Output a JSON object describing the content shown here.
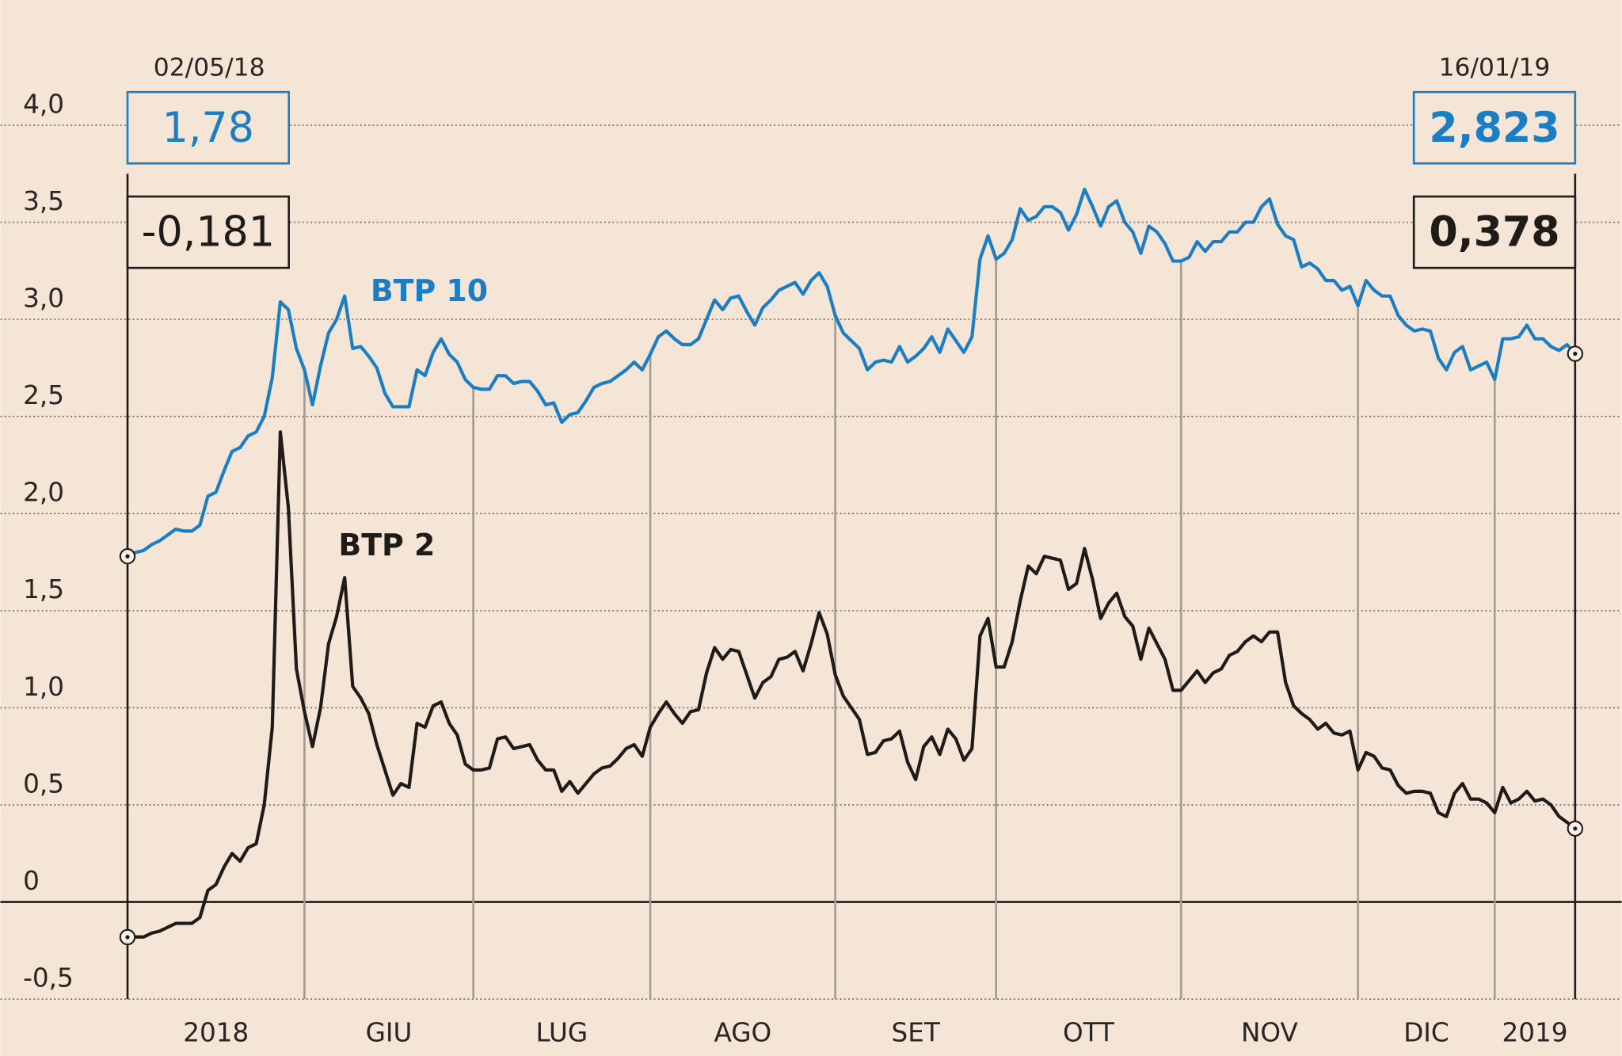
{
  "chart_data": {
    "type": "line",
    "x": [
      "02/05/18",
      "03/05/18",
      "04/05/18",
      "07/05/18",
      "08/05/18",
      "09/05/18",
      "10/05/18",
      "11/05/18",
      "14/05/18",
      "15/05/18",
      "16/05/18",
      "17/05/18",
      "18/05/18",
      "21/05/18",
      "22/05/18",
      "23/05/18",
      "24/05/18",
      "25/05/18",
      "28/05/18",
      "29/05/18",
      "30/05/18",
      "31/05/18",
      "01/06/18",
      "04/06/18",
      "05/06/18",
      "06/06/18",
      "07/06/18",
      "08/06/18",
      "11/06/18",
      "12/06/18",
      "13/06/18",
      "14/06/18",
      "15/06/18",
      "18/06/18",
      "19/06/18",
      "20/06/18",
      "21/06/18",
      "22/06/18",
      "25/06/18",
      "26/06/18",
      "27/06/18",
      "28/06/18",
      "29/06/18",
      "02/07/18",
      "03/07/18",
      "04/07/18",
      "05/07/18",
      "06/07/18",
      "09/07/18",
      "10/07/18",
      "11/07/18",
      "12/07/18",
      "13/07/18",
      "16/07/18",
      "17/07/18",
      "18/07/18",
      "19/07/18",
      "20/07/18",
      "23/07/18",
      "24/07/18",
      "25/07/18",
      "26/07/18",
      "27/07/18",
      "30/07/18",
      "31/07/18",
      "01/08/18",
      "02/08/18",
      "03/08/18",
      "06/08/18",
      "07/08/18",
      "08/08/18",
      "09/08/18",
      "10/08/18",
      "13/08/18",
      "14/08/18",
      "15/08/18",
      "16/08/18",
      "17/08/18",
      "20/08/18",
      "21/08/18",
      "22/08/18",
      "23/08/18",
      "24/08/18",
      "27/08/18",
      "28/08/18",
      "29/08/18",
      "30/08/18",
      "31/08/18",
      "03/09/18",
      "04/09/18",
      "05/09/18",
      "06/09/18",
      "07/09/18",
      "10/09/18",
      "11/09/18",
      "12/09/18",
      "13/09/18",
      "14/09/18",
      "17/09/18",
      "18/09/18",
      "19/09/18",
      "20/09/18",
      "21/09/18",
      "24/09/18",
      "25/09/18",
      "26/09/18",
      "27/09/18",
      "28/09/18",
      "01/10/18",
      "02/10/18",
      "03/10/18",
      "04/10/18",
      "05/10/18",
      "08/10/18",
      "09/10/18",
      "10/10/18",
      "11/10/18",
      "12/10/18",
      "15/10/18",
      "16/10/18",
      "17/10/18",
      "18/10/18",
      "19/10/18",
      "22/10/18",
      "23/10/18",
      "24/10/18",
      "25/10/18",
      "26/10/18",
      "29/10/18",
      "30/10/18",
      "31/10/18",
      "01/11/18",
      "02/11/18",
      "05/11/18",
      "06/11/18",
      "07/11/18",
      "08/11/18",
      "09/11/18",
      "12/11/18",
      "13/11/18",
      "14/11/18",
      "15/11/18",
      "16/11/18",
      "19/11/18",
      "20/11/18",
      "21/11/18",
      "22/11/18",
      "23/11/18",
      "26/11/18",
      "27/11/18",
      "28/11/18",
      "29/11/18",
      "30/11/18",
      "03/12/18",
      "04/12/18",
      "05/12/18",
      "06/12/18",
      "07/12/18",
      "10/12/18",
      "11/12/18",
      "12/12/18",
      "13/12/18",
      "14/12/18",
      "17/12/18",
      "18/12/18",
      "19/12/18",
      "20/12/18",
      "21/12/18",
      "27/12/18",
      "28/12/18",
      "02/01/19",
      "03/01/19",
      "04/01/19",
      "07/01/19",
      "08/01/19",
      "09/01/19",
      "10/01/19",
      "11/01/19",
      "14/01/19",
      "15/01/19",
      "16/01/19"
    ],
    "month_labels": [
      "2018",
      "GIU",
      "LUG",
      "AGO",
      "SET",
      "OTT",
      "NOV",
      "DIC",
      "2019"
    ],
    "series": [
      {
        "name": "BTP 10",
        "color": "#1b7dc2",
        "value_labels": {
          "0": "1,78",
          "180": "2,823"
        },
        "values": [
          1.78,
          1.8,
          1.81,
          1.84,
          1.86,
          1.89,
          1.92,
          1.91,
          1.91,
          1.94,
          2.09,
          2.11,
          2.22,
          2.32,
          2.34,
          2.4,
          2.42,
          2.5,
          2.7,
          3.09,
          3.05,
          2.85,
          2.74,
          2.56,
          2.76,
          2.93,
          3.0,
          3.12,
          2.85,
          2.86,
          2.81,
          2.75,
          2.62,
          2.55,
          2.55,
          2.55,
          2.74,
          2.71,
          2.83,
          2.9,
          2.82,
          2.78,
          2.69,
          2.65,
          2.64,
          2.64,
          2.71,
          2.71,
          2.67,
          2.68,
          2.68,
          2.63,
          2.56,
          2.57,
          2.47,
          2.51,
          2.52,
          2.58,
          2.65,
          2.67,
          2.68,
          2.71,
          2.74,
          2.78,
          2.74,
          2.82,
          2.91,
          2.94,
          2.9,
          2.87,
          2.87,
          2.9,
          3.0,
          3.1,
          3.05,
          3.11,
          3.12,
          3.04,
          2.97,
          3.06,
          3.1,
          3.15,
          3.17,
          3.19,
          3.13,
          3.2,
          3.24,
          3.17,
          3.02,
          2.93,
          2.89,
          2.85,
          2.74,
          2.78,
          2.79,
          2.78,
          2.86,
          2.78,
          2.81,
          2.85,
          2.91,
          2.83,
          2.95,
          2.89,
          2.83,
          2.91,
          3.31,
          3.43,
          3.31,
          3.34,
          3.41,
          3.57,
          3.51,
          3.53,
          3.58,
          3.58,
          3.55,
          3.46,
          3.54,
          3.67,
          3.58,
          3.48,
          3.58,
          3.61,
          3.5,
          3.45,
          3.34,
          3.48,
          3.45,
          3.39,
          3.3,
          3.3,
          3.32,
          3.4,
          3.35,
          3.4,
          3.4,
          3.45,
          3.45,
          3.5,
          3.5,
          3.58,
          3.62,
          3.49,
          3.43,
          3.41,
          3.27,
          3.29,
          3.26,
          3.2,
          3.2,
          3.15,
          3.17,
          3.07,
          3.2,
          3.15,
          3.12,
          3.12,
          3.02,
          2.97,
          2.94,
          2.95,
          2.94,
          2.8,
          2.74,
          2.83,
          2.86,
          2.74,
          2.76,
          2.78,
          2.69,
          2.9,
          2.9,
          2.91,
          2.97,
          2.9,
          2.9,
          2.86,
          2.84,
          2.87,
          2.823
        ]
      },
      {
        "name": "BTP 2",
        "color": "#1e1b19",
        "value_labels": {
          "0": "-0,181",
          "180": "0,378"
        },
        "values": [
          -0.181,
          -0.18,
          -0.18,
          -0.16,
          -0.15,
          -0.13,
          -0.11,
          -0.11,
          -0.11,
          -0.08,
          0.06,
          0.09,
          0.18,
          0.25,
          0.21,
          0.28,
          0.3,
          0.5,
          0.9,
          2.42,
          2.03,
          1.2,
          0.98,
          0.8,
          1.0,
          1.33,
          1.47,
          1.67,
          1.11,
          1.05,
          0.97,
          0.81,
          0.68,
          0.55,
          0.61,
          0.59,
          0.92,
          0.9,
          1.01,
          1.03,
          0.92,
          0.86,
          0.71,
          0.68,
          0.68,
          0.69,
          0.84,
          0.85,
          0.79,
          0.8,
          0.81,
          0.73,
          0.68,
          0.68,
          0.57,
          0.62,
          0.56,
          0.61,
          0.66,
          0.69,
          0.7,
          0.74,
          0.79,
          0.81,
          0.75,
          0.9,
          0.97,
          1.03,
          0.97,
          0.92,
          0.98,
          0.99,
          1.18,
          1.31,
          1.25,
          1.3,
          1.29,
          1.17,
          1.05,
          1.13,
          1.16,
          1.25,
          1.26,
          1.29,
          1.19,
          1.33,
          1.49,
          1.38,
          1.17,
          1.06,
          1.0,
          0.94,
          0.76,
          0.77,
          0.83,
          0.84,
          0.88,
          0.72,
          0.63,
          0.8,
          0.85,
          0.76,
          0.89,
          0.84,
          0.73,
          0.79,
          1.37,
          1.46,
          1.21,
          1.21,
          1.34,
          1.55,
          1.73,
          1.69,
          1.78,
          1.77,
          1.76,
          1.61,
          1.64,
          1.82,
          1.66,
          1.46,
          1.54,
          1.59,
          1.47,
          1.42,
          1.25,
          1.41,
          1.33,
          1.25,
          1.09,
          1.09,
          1.14,
          1.19,
          1.13,
          1.18,
          1.2,
          1.27,
          1.29,
          1.34,
          1.37,
          1.34,
          1.39,
          1.39,
          1.13,
          1.01,
          0.97,
          0.94,
          0.89,
          0.92,
          0.87,
          0.86,
          0.88,
          0.68,
          0.77,
          0.75,
          0.69,
          0.68,
          0.6,
          0.56,
          0.57,
          0.57,
          0.56,
          0.46,
          0.44,
          0.56,
          0.61,
          0.53,
          0.53,
          0.51,
          0.46,
          0.59,
          0.51,
          0.53,
          0.57,
          0.52,
          0.53,
          0.5,
          0.44,
          0.41,
          0.378
        ]
      }
    ],
    "ylim": [
      -0.5,
      4.0
    ],
    "yticks": [
      {
        "value": -0.5,
        "label": "-0,5"
      },
      0,
      {
        "value": 0.5,
        "label": "0,5"
      },
      {
        "value": 1.0,
        "label": "1,0"
      },
      {
        "value": 1.5,
        "label": "1,5"
      },
      {
        "value": 2.0,
        "label": "2,0"
      },
      {
        "value": 2.5,
        "label": "2,5"
      },
      {
        "value": 3.0,
        "label": "3,0"
      },
      {
        "value": 3.5,
        "label": "3,5"
      },
      {
        "value": 4.0,
        "label": "4,0"
      }
    ],
    "grid": true,
    "background": "#f5e5d6"
  }
}
